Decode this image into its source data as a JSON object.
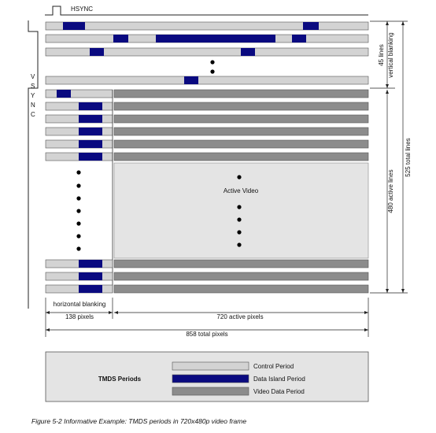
{
  "hsync_label": "HSYNC",
  "vsync_letters": [
    "V",
    "S",
    "Y",
    "N",
    "C"
  ],
  "active_video_label": "Active Video",
  "dimensions": {
    "h_blank_label": "horizontal blanking",
    "h_blank_pixels": "138 pixels",
    "active_pixels": "720 active pixels",
    "total_pixels": "858 total pixels",
    "vblank_lines": "45 lines",
    "vblank_label": "vertical blanking",
    "active_lines": "480 active lines",
    "total_lines": "525 total lines"
  },
  "legend": {
    "title": "TMDS Periods",
    "items": [
      {
        "label": "Control Period",
        "color": "#d3d3d3"
      },
      {
        "label": "Data Island Period",
        "color": "#0a0a80"
      },
      {
        "label": "Video Data Period",
        "color": "#8c8c8c"
      }
    ]
  },
  "caption": "Figure 5-2 Informative Example: TMDS periods in 720x480p video frame",
  "colors": {
    "control": "#d3d3d3",
    "data_island": "#0a0a80",
    "video": "#8c8c8c",
    "active_area": "#e4e4e4",
    "line": "#333333"
  }
}
